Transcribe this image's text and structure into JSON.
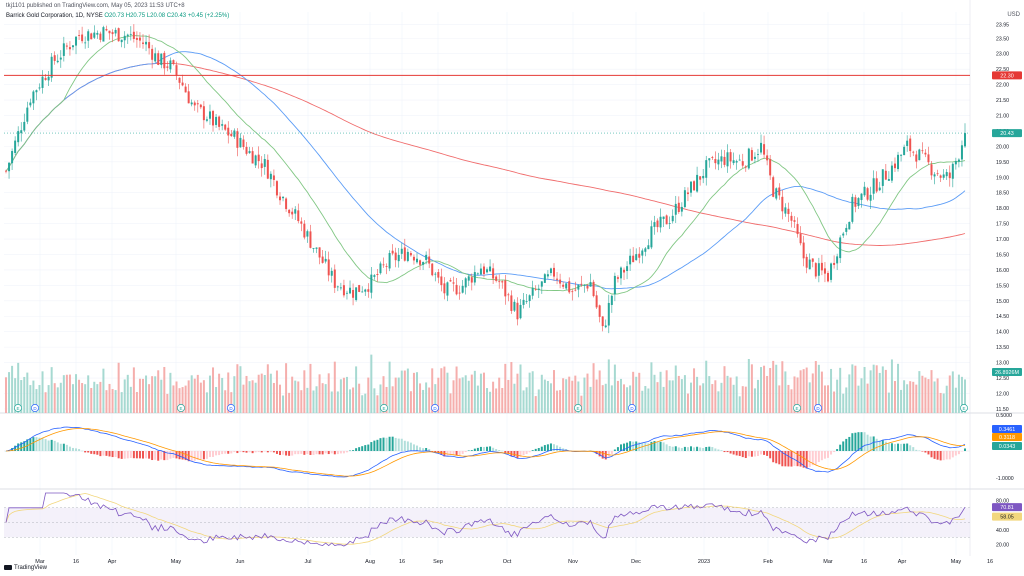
{
  "header": {
    "published": "tkj1101 published on TradingView.com, May 05, 2023 11:53 UTC+8"
  },
  "legend": {
    "symbol": "Barrick Gold Corporation, 1D, NYSE",
    "open": "O20.73",
    "high": "H20.75",
    "low": "L20.08",
    "close": "C20.43",
    "change": "+0.45 (+2.25%)"
  },
  "currency": "USD",
  "logo": {
    "text": "TradingView"
  },
  "colors": {
    "up": "#26a69a",
    "down": "#ef5350",
    "ma_fast": "#81c784",
    "ma_mid": "#5b9cf6",
    "ma_slow": "#f06c6c",
    "hline": "#e53935",
    "macd": "#2962ff",
    "signal": "#ff9800",
    "rsi": "#7e57c2",
    "rsi_ma": "#f2d77e"
  },
  "icons": [
    "earnings-e-icon",
    "dividend-d-icon"
  ],
  "chart_data": [
    {
      "type": "candlestick",
      "pane": "price",
      "scale": "linear",
      "ylim": [
        11.4,
        24.35
      ],
      "x_ticks": [
        "Mar",
        "16",
        "Apr",
        "May",
        "Jun",
        "Jul",
        "Aug",
        "16",
        "Sep",
        "Oct",
        "Nov",
        "Dec",
        "2023",
        "Feb",
        "Mar",
        "16",
        "Apr",
        "May",
        "16"
      ],
      "y_ticks": [
        "23.95",
        "23.50",
        "23.00",
        "22.50",
        "22.00",
        "21.50",
        "21.00",
        "20.50",
        "20.00",
        "19.50",
        "19.00",
        "18.50",
        "18.00",
        "17.50",
        "17.00",
        "16.50",
        "16.00",
        "15.50",
        "15.00",
        "14.50",
        "14.00",
        "13.50",
        "13.00",
        "12.50",
        "12.00",
        "11.50"
      ],
      "last_price": {
        "label": "20.43",
        "value": 20.43
      },
      "horizontal_line": {
        "label": "22.30",
        "value": 22.3
      },
      "volume_label": {
        "label": "26.8926M"
      },
      "trend_anchors": [
        [
          0,
          19.2
        ],
        [
          8,
          21.6
        ],
        [
          16,
          22.8
        ],
        [
          24,
          23.6
        ],
        [
          32,
          23.7
        ],
        [
          40,
          23.6
        ],
        [
          46,
          23.3
        ],
        [
          50,
          22.8
        ],
        [
          54,
          22.6
        ],
        [
          58,
          22.0
        ],
        [
          62,
          21.2
        ],
        [
          66,
          21.0
        ],
        [
          70,
          20.6
        ],
        [
          75,
          20.3
        ],
        [
          80,
          19.8
        ],
        [
          85,
          19.4
        ],
        [
          90,
          18.5
        ],
        [
          96,
          17.6
        ],
        [
          102,
          16.6
        ],
        [
          108,
          15.6
        ],
        [
          114,
          15.3
        ],
        [
          120,
          15.6
        ],
        [
          126,
          16.3
        ],
        [
          132,
          16.6
        ],
        [
          138,
          16.3
        ],
        [
          144,
          15.3
        ],
        [
          150,
          15.5
        ],
        [
          156,
          16.1
        ],
        [
          162,
          15.6
        ],
        [
          168,
          14.6
        ],
        [
          174,
          15.3
        ],
        [
          180,
          15.9
        ],
        [
          186,
          15.3
        ],
        [
          192,
          15.6
        ],
        [
          196,
          14.0
        ],
        [
          200,
          15.6
        ],
        [
          206,
          16.4
        ],
        [
          212,
          17.2
        ],
        [
          218,
          17.7
        ],
        [
          224,
          18.5
        ],
        [
          230,
          19.3
        ],
        [
          236,
          19.6
        ],
        [
          242,
          19.5
        ],
        [
          248,
          20.0
        ],
        [
          252,
          18.6
        ],
        [
          258,
          17.6
        ],
        [
          262,
          16.4
        ],
        [
          266,
          16.0
        ],
        [
          270,
          15.8
        ],
        [
          274,
          17.0
        ],
        [
          278,
          18.1
        ],
        [
          284,
          18.6
        ],
        [
          290,
          19.2
        ],
        [
          296,
          20.0
        ],
        [
          300,
          19.7
        ],
        [
          304,
          19.3
        ],
        [
          308,
          19.0
        ],
        [
          310,
          19.0
        ],
        [
          313,
          19.8
        ],
        [
          315,
          20.43
        ]
      ]
    },
    {
      "type": "line",
      "pane": "macd",
      "y_ticks": [
        "0.5000",
        "-1.0000"
      ],
      "labels": {
        "macd": "0.3461",
        "signal": "0.3118",
        "hist": "0.0343"
      }
    },
    {
      "type": "line",
      "pane": "rsi",
      "y_ticks": [
        "80.00",
        "60.00",
        "40.00",
        "20.00"
      ],
      "labels": {
        "rsi": "70.81",
        "rsi_ma": "58.05"
      },
      "bands": [
        70,
        30
      ]
    }
  ]
}
